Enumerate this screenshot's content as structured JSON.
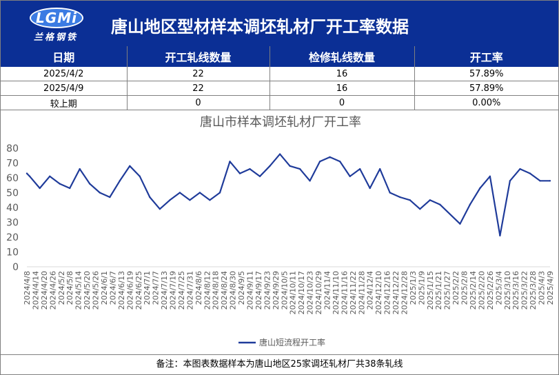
{
  "header": {
    "logo_letters": "LGMi",
    "logo_text": "兰格钢铁",
    "title": "唐山地区型材样本调坯轧材厂开工率数据"
  },
  "table": {
    "columns": [
      "日期",
      "开工轧线数量",
      "检修轧线数量",
      "开工率"
    ],
    "rows": [
      [
        "2025/4/2",
        "22",
        "16",
        "57.89%"
      ],
      [
        "2025/4/9",
        "22",
        "16",
        "57.89%"
      ],
      [
        "较上期",
        "0",
        "0",
        "0.00%"
      ]
    ]
  },
  "chart_data": {
    "type": "line",
    "title": "唐山市样本调坯轧材厂开工率",
    "ylim": [
      0,
      80
    ],
    "yticks": [
      0,
      10,
      20,
      30,
      40,
      50,
      60,
      70,
      80
    ],
    "legend_position": "bottom",
    "grid": false,
    "color": "#1f3b9a",
    "categories": [
      "2024/4/8",
      "2024/4/14",
      "2024/4/20",
      "2024/4/26",
      "2024/5/2",
      "2024/5/8",
      "2024/5/14",
      "2024/5/20",
      "2024/5/26",
      "2024/6/1",
      "2024/6/7",
      "2024/6/13",
      "2024/6/19",
      "2024/6/25",
      "2024/7/1",
      "2024/7/7",
      "2024/7/13",
      "2024/7/19",
      "2024/7/25",
      "2024/7/31",
      "2024/8/6",
      "2024/8/12",
      "2024/8/18",
      "2024/8/24",
      "2024/8/30",
      "2024/9/5",
      "2024/9/11",
      "2024/9/17",
      "2024/9/23",
      "2024/9/29",
      "2024/10/5",
      "2024/10/11",
      "2024/10/17",
      "2024/10/23",
      "2024/10/29",
      "2024/11/4",
      "2024/11/10",
      "2024/11/16",
      "2024/11/22",
      "2024/11/28",
      "2024/12/4",
      "2024/12/10",
      "2024/12/16",
      "2024/12/22",
      "2024/12/28",
      "2025/1/3",
      "2025/1/9",
      "2025/1/15",
      "2025/1/21",
      "2025/1/27",
      "2025/2/2",
      "2025/2/8",
      "2025/2/14",
      "2025/2/20",
      "2025/2/26",
      "2025/3/4",
      "2025/3/10",
      "2025/3/16",
      "2025/3/22",
      "2025/3/28",
      "2025/4/3",
      "2025/4/9"
    ],
    "series": [
      {
        "name": "唐山短流程开工率",
        "x": [
          "2024/4/8",
          "2024/4/10",
          "2024/4/17",
          "2024/4/24",
          "2024/5/1",
          "2024/5/8",
          "2024/5/15",
          "2024/5/22",
          "2024/5/29",
          "2024/6/5",
          "2024/6/12",
          "2024/6/19",
          "2024/6/26",
          "2024/7/3",
          "2024/7/10",
          "2024/7/17",
          "2024/7/24",
          "2024/7/31",
          "2024/8/7",
          "2024/8/14",
          "2024/8/21",
          "2024/8/28",
          "2024/9/4",
          "2024/9/11",
          "2024/9/18",
          "2024/9/25",
          "2024/10/2",
          "2024/10/9",
          "2024/10/16",
          "2024/10/23",
          "2024/10/30",
          "2024/11/6",
          "2024/11/13",
          "2024/11/20",
          "2024/11/27",
          "2024/12/4",
          "2024/12/11",
          "2024/12/18",
          "2024/12/25",
          "2025/1/1",
          "2025/1/8",
          "2025/1/15",
          "2025/1/22",
          "2025/2/5",
          "2025/2/12",
          "2025/2/19",
          "2025/2/26",
          "2025/3/5",
          "2025/3/12",
          "2025/3/19",
          "2025/3/26",
          "2025/4/2",
          "2025/4/9"
        ],
        "values": [
          63,
          61,
          53,
          61,
          56,
          53,
          66,
          56,
          50,
          47,
          58,
          68,
          61,
          47,
          39,
          45,
          50,
          45,
          50,
          45,
          50,
          71,
          63,
          66,
          61,
          68,
          76,
          68,
          66,
          58,
          71,
          74,
          71,
          61,
          66,
          53,
          66,
          50,
          47,
          45,
          39,
          45,
          42,
          29,
          42,
          53,
          61,
          21,
          58,
          66,
          63,
          58,
          58
        ]
      }
    ]
  },
  "footer": {
    "note": "备注：本图表数据样本为唐山地区25家调坯轧材厂共38条轧线"
  }
}
